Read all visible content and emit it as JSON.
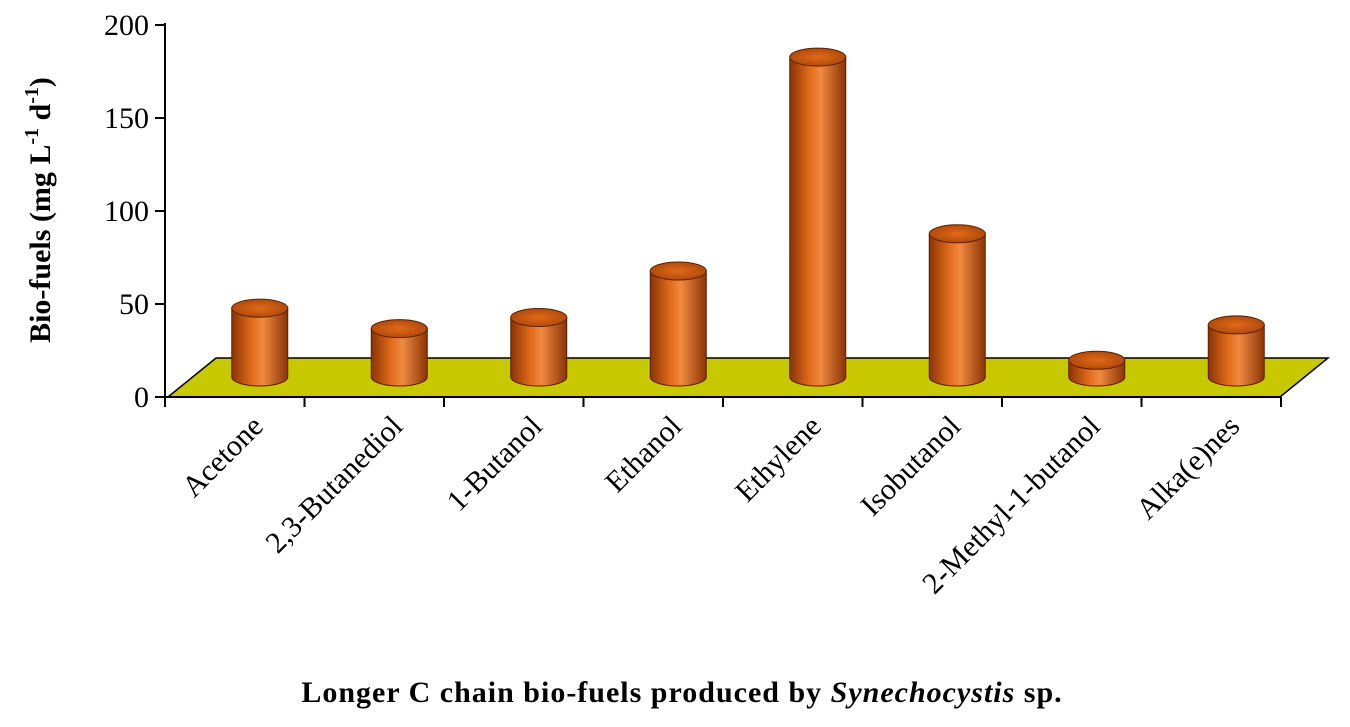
{
  "chart_data": {
    "type": "bar",
    "categories": [
      "Acetone",
      "2,3-Butanediol",
      "1-Butanol",
      "Ethanol",
      "Ethylene",
      "Isobutanol",
      "2-Methyl-1-butanol",
      "Alka(e)nes"
    ],
    "values": [
      37,
      26,
      32,
      57,
      172,
      77,
      9,
      28
    ],
    "ylim": [
      0,
      200
    ],
    "yticks": [
      "0",
      "50",
      "100",
      "150",
      "200"
    ],
    "ylabel": {
      "prefix": "Bio-fuels (mg L",
      "sup1": "-1",
      "mid": " d",
      "sup2": "-1",
      "suffix": ")"
    },
    "xlabel": {
      "prefix": "Longer C chain bio-fuels produced by ",
      "italic": "Synechocystis",
      "suffix": " sp."
    },
    "grid": false,
    "legend": "none",
    "colors": {
      "bar": "#d35a10",
      "bar_dark": "#7a2c04",
      "bar_light": "#f08a40",
      "floor": "#c8c800",
      "axis": "#000000"
    }
  }
}
